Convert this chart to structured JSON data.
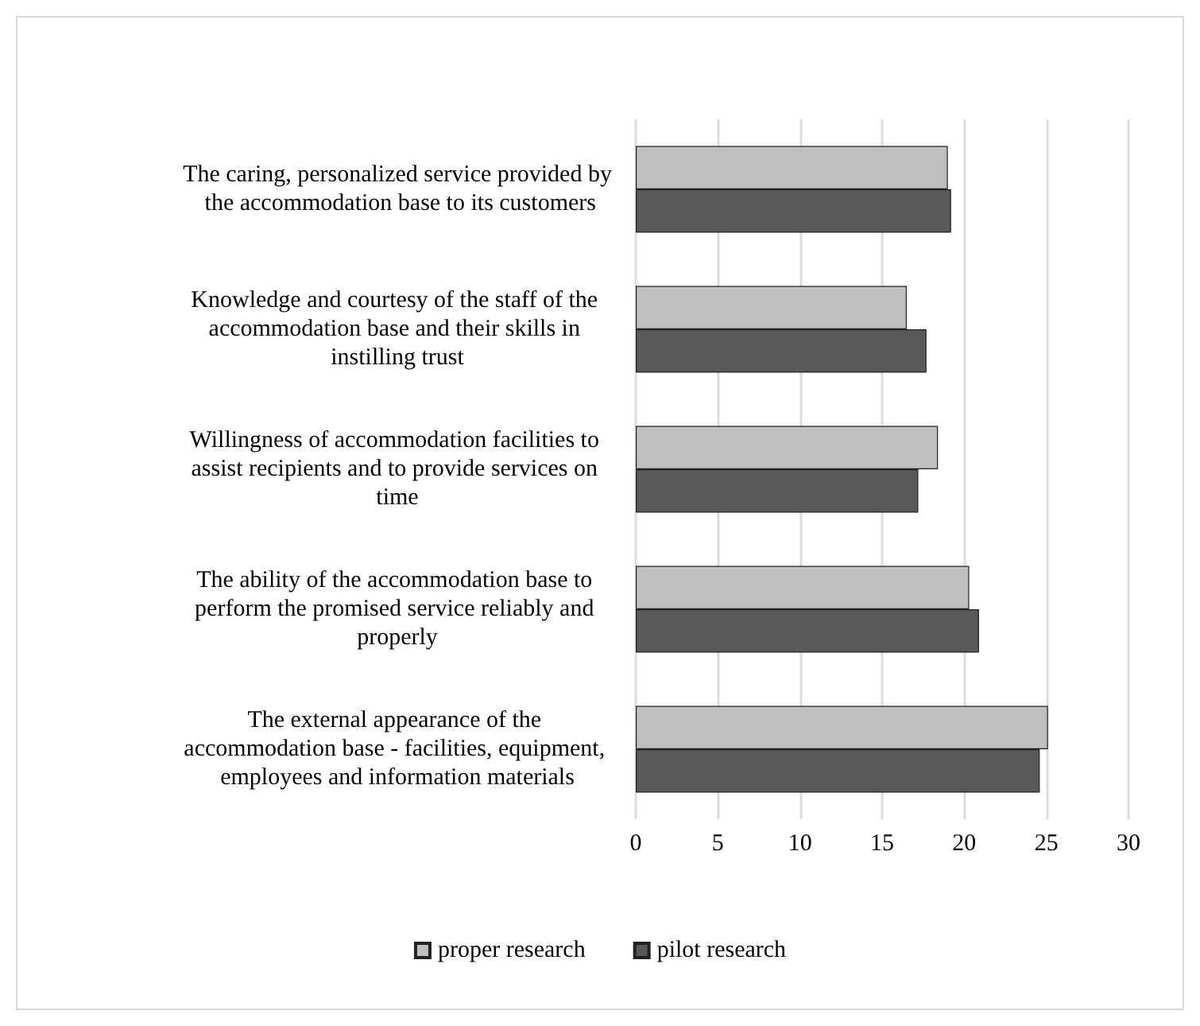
{
  "chart_data": {
    "type": "bar",
    "orientation": "horizontal",
    "categories": [
      "The caring, personalized service provided by the accommodation base to its customers",
      "Knowledge and courtesy of the staff of the accommodation base and their skills in instilling trust",
      "Willingness of accommodation facilities to assist recipients and to provide services on time",
      "The ability of the accommodation base to perform the promised service reliably and properly",
      "The external appearance of the accommodation base - facilities, equipment, employees and information materials"
    ],
    "series": [
      {
        "name": "proper research",
        "color": "#bfbfbf",
        "values": [
          19,
          16.5,
          18.4,
          20.3,
          25.1
        ]
      },
      {
        "name": "pilot research",
        "color": "#595959",
        "values": [
          19.2,
          17.7,
          17.2,
          20.9,
          24.6
        ]
      }
    ],
    "xlim": [
      0,
      30
    ],
    "xticks": [
      0,
      5,
      10,
      15,
      20,
      25,
      30
    ],
    "grid": "x",
    "legend": "bottom"
  }
}
